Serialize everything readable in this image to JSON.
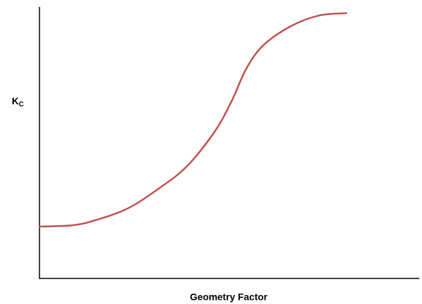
{
  "chart_data": {
    "type": "line",
    "x_label": "Geometry Factor",
    "y_label": "K",
    "y_label_subscript": "C",
    "x": [
      0,
      8.8,
      15.1,
      23.4,
      31.6,
      38.9,
      46.2,
      50.7,
      54.4,
      58.9,
      66.2,
      73.5,
      80.8
    ],
    "series": [
      {
        "color": "#c0504d",
        "values": [
          19.1,
          19.6,
          21.6,
          25.9,
          33.3,
          41.4,
          54.2,
          65.6,
          77.1,
          85.8,
          92.9,
          96.8,
          97.7
        ]
      }
    ],
    "xlim": [
      0,
      100
    ],
    "ylim": [
      0,
      100
    ]
  }
}
